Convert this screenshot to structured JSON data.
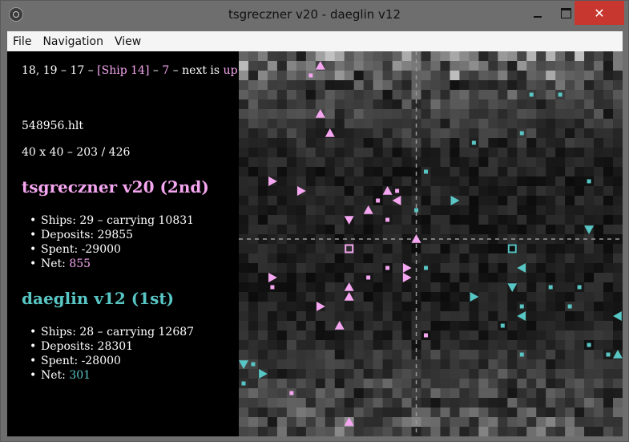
{
  "window": {
    "title": "tsgreczner v20 - daeglin v12",
    "close_glyph": "✕"
  },
  "menu": [
    "File",
    "Navigation",
    "View"
  ],
  "status": {
    "coords": "18, 19",
    "sep1": " – ",
    "turn": "17",
    "sep2": " – ",
    "ship": "[Ship 14]",
    "sep3": " – ",
    "halite": "7",
    "sep4": " – next is ",
    "next": "up"
  },
  "replay_file": "548956.hlt",
  "map_info": "40 x 40 – 203 / 426",
  "players": [
    {
      "name": "tsgreczner v20 (2nd)",
      "color": "#f5a6f0",
      "ships": "Ships: 29 – carrying 10831",
      "deposits": "Deposits: 29855",
      "spent": "Spent: -29000",
      "net_label": "Net: ",
      "net": "855"
    },
    {
      "name": "daeglin v12 (1st)",
      "color": "#58c6c4",
      "ships": "Ships: 28 – carrying 12687",
      "deposits": "Deposits: 28301",
      "spent": "Spent: -28000",
      "net_label": "Net: ",
      "net": "301"
    }
  ],
  "board": {
    "cols": 40,
    "rows": 40,
    "p1_color": "#f5a6f0",
    "p2_color": "#58c6c4",
    "crosshair_col": 18,
    "crosshair_row": 19,
    "shipyards": [
      {
        "owner": 1,
        "col": 11,
        "row": 20
      },
      {
        "owner": 2,
        "col": 28,
        "row": 20
      }
    ],
    "ships": [
      {
        "owner": 1,
        "col": 8,
        "row": 1,
        "dir": "up"
      },
      {
        "owner": 1,
        "col": 8,
        "row": 6,
        "dir": "up"
      },
      {
        "owner": 1,
        "col": 9,
        "row": 8,
        "dir": "up"
      },
      {
        "owner": 1,
        "col": 3,
        "row": 13,
        "dir": "right"
      },
      {
        "owner": 1,
        "col": 6,
        "row": 14,
        "dir": "right"
      },
      {
        "owner": 1,
        "col": 15,
        "row": 14,
        "dir": "up"
      },
      {
        "owner": 1,
        "col": 16,
        "row": 15,
        "dir": "left"
      },
      {
        "owner": 1,
        "col": 13,
        "row": 16,
        "dir": "up"
      },
      {
        "owner": 1,
        "col": 11,
        "row": 17,
        "dir": "down"
      },
      {
        "owner": 1,
        "col": 18,
        "row": 19,
        "dir": "up"
      },
      {
        "owner": 1,
        "col": 17,
        "row": 22,
        "dir": "right"
      },
      {
        "owner": 1,
        "col": 17,
        "row": 23,
        "dir": "right"
      },
      {
        "owner": 1,
        "col": 3,
        "row": 23,
        "dir": "right"
      },
      {
        "owner": 1,
        "col": 11,
        "row": 24,
        "dir": "up"
      },
      {
        "owner": 1,
        "col": 11,
        "row": 25,
        "dir": "up"
      },
      {
        "owner": 1,
        "col": 8,
        "row": 26,
        "dir": "right"
      },
      {
        "owner": 1,
        "col": 10,
        "row": 28,
        "dir": "up"
      },
      {
        "owner": 1,
        "col": 11,
        "row": 38,
        "dir": "up"
      },
      {
        "owner": 2,
        "col": 22,
        "row": 15,
        "dir": "right"
      },
      {
        "owner": 2,
        "col": 36,
        "row": 18,
        "dir": "down"
      },
      {
        "owner": 2,
        "col": 29,
        "row": 22,
        "dir": "left"
      },
      {
        "owner": 2,
        "col": 28,
        "row": 24,
        "dir": "down"
      },
      {
        "owner": 2,
        "col": 24,
        "row": 25,
        "dir": "right"
      },
      {
        "owner": 2,
        "col": 29,
        "row": 27,
        "dir": "left"
      },
      {
        "owner": 2,
        "col": 39,
        "row": 27,
        "dir": "left"
      },
      {
        "owner": 2,
        "col": 39,
        "row": 31,
        "dir": "up"
      },
      {
        "owner": 2,
        "col": 0,
        "row": 32,
        "dir": "down"
      },
      {
        "owner": 2,
        "col": 2,
        "row": 33,
        "dir": "right"
      }
    ],
    "drops": [
      {
        "owner": 1,
        "col": 7,
        "row": 2
      },
      {
        "owner": 1,
        "col": 14,
        "row": 15
      },
      {
        "owner": 1,
        "col": 16,
        "row": 14
      },
      {
        "owner": 1,
        "col": 15,
        "row": 17
      },
      {
        "owner": 1,
        "col": 15,
        "row": 22
      },
      {
        "owner": 1,
        "col": 13,
        "row": 23
      },
      {
        "owner": 1,
        "col": 3,
        "row": 24
      },
      {
        "owner": 1,
        "col": 19,
        "row": 29
      },
      {
        "owner": 1,
        "col": 5,
        "row": 35
      },
      {
        "owner": 2,
        "col": 30,
        "row": 4
      },
      {
        "owner": 2,
        "col": 33,
        "row": 4
      },
      {
        "owner": 2,
        "col": 29,
        "row": 8
      },
      {
        "owner": 2,
        "col": 24,
        "row": 9
      },
      {
        "owner": 2,
        "col": 19,
        "row": 12
      },
      {
        "owner": 2,
        "col": 36,
        "row": 13
      },
      {
        "owner": 2,
        "col": 18,
        "row": 16
      },
      {
        "owner": 2,
        "col": 19,
        "row": 22
      },
      {
        "owner": 2,
        "col": 32,
        "row": 24
      },
      {
        "owner": 2,
        "col": 35,
        "row": 24
      },
      {
        "owner": 2,
        "col": 34,
        "row": 26
      },
      {
        "owner": 2,
        "col": 29,
        "row": 26
      },
      {
        "owner": 2,
        "col": 27,
        "row": 28
      },
      {
        "owner": 2,
        "col": 36,
        "row": 30
      },
      {
        "owner": 2,
        "col": 38,
        "row": 31
      },
      {
        "owner": 2,
        "col": 29,
        "row": 31
      },
      {
        "owner": 2,
        "col": 1,
        "row": 32
      },
      {
        "owner": 2,
        "col": 0,
        "row": 34
      }
    ]
  }
}
